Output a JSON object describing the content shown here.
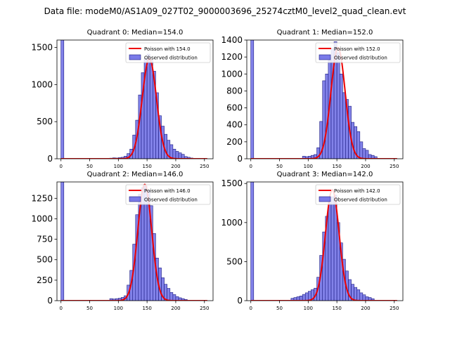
{
  "suptitle": "Data file: modeM0/AS1A09_027T02_9000003696_25274cztM0_level2_quad_clean.evt",
  "colors": {
    "bar_fill": "#7b7be8",
    "bar_edge": "#1a1a80",
    "poisson_line": "#ee0000"
  },
  "chart_data": [
    {
      "type": "bar",
      "title": "Quadrant 0: Median=154.0",
      "xlim": [
        -7,
        265
      ],
      "ylim": [
        0,
        1600
      ],
      "xticks": [
        0,
        50,
        100,
        150,
        200,
        250
      ],
      "yticks": [
        0,
        500,
        1000,
        1500
      ],
      "legend_position": "upper right",
      "legend": [
        "Poisson with 154.0",
        "Observed distribution"
      ],
      "bin_width": 5,
      "bars": [
        [
          0,
          1600
        ],
        [
          85,
          8
        ],
        [
          90,
          12
        ],
        [
          95,
          10
        ],
        [
          100,
          15
        ],
        [
          105,
          20
        ],
        [
          110,
          35
        ],
        [
          115,
          70
        ],
        [
          120,
          130
        ],
        [
          125,
          320
        ],
        [
          130,
          520
        ],
        [
          135,
          860
        ],
        [
          140,
          1160
        ],
        [
          145,
          1350
        ],
        [
          150,
          1410
        ],
        [
          155,
          1330
        ],
        [
          160,
          1180
        ],
        [
          165,
          890
        ],
        [
          170,
          580
        ],
        [
          175,
          440
        ],
        [
          180,
          330
        ],
        [
          185,
          250
        ],
        [
          190,
          190
        ],
        [
          195,
          130
        ],
        [
          200,
          100
        ],
        [
          205,
          80
        ],
        [
          210,
          60
        ],
        [
          215,
          30
        ],
        [
          220,
          20
        ],
        [
          225,
          10
        ]
      ],
      "poisson_mean": 154.0,
      "poisson_peak": 1350
    },
    {
      "type": "bar",
      "title": "Quadrant 1: Median=152.0",
      "xlim": [
        -7,
        265
      ],
      "ylim": [
        0,
        1400
      ],
      "xticks": [
        0,
        50,
        100,
        150,
        200,
        250
      ],
      "yticks": [
        0,
        200,
        400,
        600,
        800,
        1000,
        1200,
        1400
      ],
      "legend_position": "upper right",
      "legend": [
        "Poisson with 152.0",
        "Observed distribution"
      ],
      "bin_width": 5,
      "bars": [
        [
          0,
          1400
        ],
        [
          90,
          30
        ],
        [
          95,
          25
        ],
        [
          100,
          30
        ],
        [
          105,
          40
        ],
        [
          110,
          50
        ],
        [
          115,
          130
        ],
        [
          120,
          440
        ],
        [
          125,
          920
        ],
        [
          130,
          1000
        ],
        [
          135,
          1200
        ],
        [
          140,
          1300
        ],
        [
          145,
          1380
        ],
        [
          150,
          1250
        ],
        [
          155,
          1000
        ],
        [
          160,
          780
        ],
        [
          165,
          700
        ],
        [
          170,
          620
        ],
        [
          175,
          430
        ],
        [
          180,
          380
        ],
        [
          185,
          320
        ],
        [
          190,
          200
        ],
        [
          195,
          120
        ],
        [
          200,
          100
        ],
        [
          205,
          50
        ],
        [
          210,
          40
        ],
        [
          215,
          25
        ]
      ],
      "poisson_mean": 152.0,
      "poisson_peak": 1310
    },
    {
      "type": "bar",
      "title": "Quadrant 2: Median=146.0",
      "xlim": [
        -7,
        265
      ],
      "ylim": [
        0,
        1450
      ],
      "xticks": [
        0,
        50,
        100,
        150,
        200,
        250
      ],
      "yticks": [
        0,
        250,
        500,
        750,
        1000,
        1250
      ],
      "legend_position": "upper right",
      "legend": [
        "Poisson with 146.0",
        "Observed distribution"
      ],
      "bin_width": 5,
      "bars": [
        [
          0,
          1450
        ],
        [
          85,
          25
        ],
        [
          90,
          20
        ],
        [
          95,
          25
        ],
        [
          100,
          30
        ],
        [
          105,
          40
        ],
        [
          110,
          60
        ],
        [
          115,
          190
        ],
        [
          120,
          370
        ],
        [
          125,
          690
        ],
        [
          130,
          1050
        ],
        [
          135,
          1300
        ],
        [
          140,
          1380
        ],
        [
          145,
          1400
        ],
        [
          150,
          1350
        ],
        [
          155,
          1160
        ],
        [
          160,
          820
        ],
        [
          165,
          520
        ],
        [
          170,
          400
        ],
        [
          175,
          280
        ],
        [
          180,
          200
        ],
        [
          185,
          150
        ],
        [
          190,
          100
        ],
        [
          195,
          75
        ],
        [
          200,
          50
        ],
        [
          205,
          35
        ],
        [
          210,
          25
        ],
        [
          215,
          15
        ]
      ],
      "poisson_mean": 146.0,
      "poisson_peak": 1420
    },
    {
      "type": "bar",
      "title": "Quadrant 3: Median=142.0",
      "xlim": [
        -7,
        265
      ],
      "ylim": [
        0,
        1520
      ],
      "xticks": [
        0,
        50,
        100,
        150,
        200,
        250
      ],
      "yticks": [
        0,
        500,
        1000,
        1500
      ],
      "legend_position": "upper right",
      "legend": [
        "Poisson with 142.0",
        "Observed distribution"
      ],
      "bin_width": 5,
      "bars": [
        [
          0,
          1520
        ],
        [
          70,
          30
        ],
        [
          75,
          40
        ],
        [
          80,
          50
        ],
        [
          85,
          60
        ],
        [
          90,
          80
        ],
        [
          95,
          100
        ],
        [
          100,
          120
        ],
        [
          105,
          140
        ],
        [
          110,
          160
        ],
        [
          115,
          300
        ],
        [
          120,
          580
        ],
        [
          125,
          880
        ],
        [
          130,
          1080
        ],
        [
          135,
          1250
        ],
        [
          140,
          1330
        ],
        [
          145,
          1350
        ],
        [
          150,
          1000
        ],
        [
          155,
          740
        ],
        [
          160,
          530
        ],
        [
          165,
          380
        ],
        [
          170,
          270
        ],
        [
          175,
          210
        ],
        [
          180,
          170
        ],
        [
          185,
          140
        ],
        [
          190,
          100
        ],
        [
          195,
          75
        ],
        [
          200,
          50
        ],
        [
          205,
          40
        ],
        [
          210,
          25
        ]
      ],
      "poisson_mean": 142.0,
      "poisson_peak": 1420
    }
  ]
}
